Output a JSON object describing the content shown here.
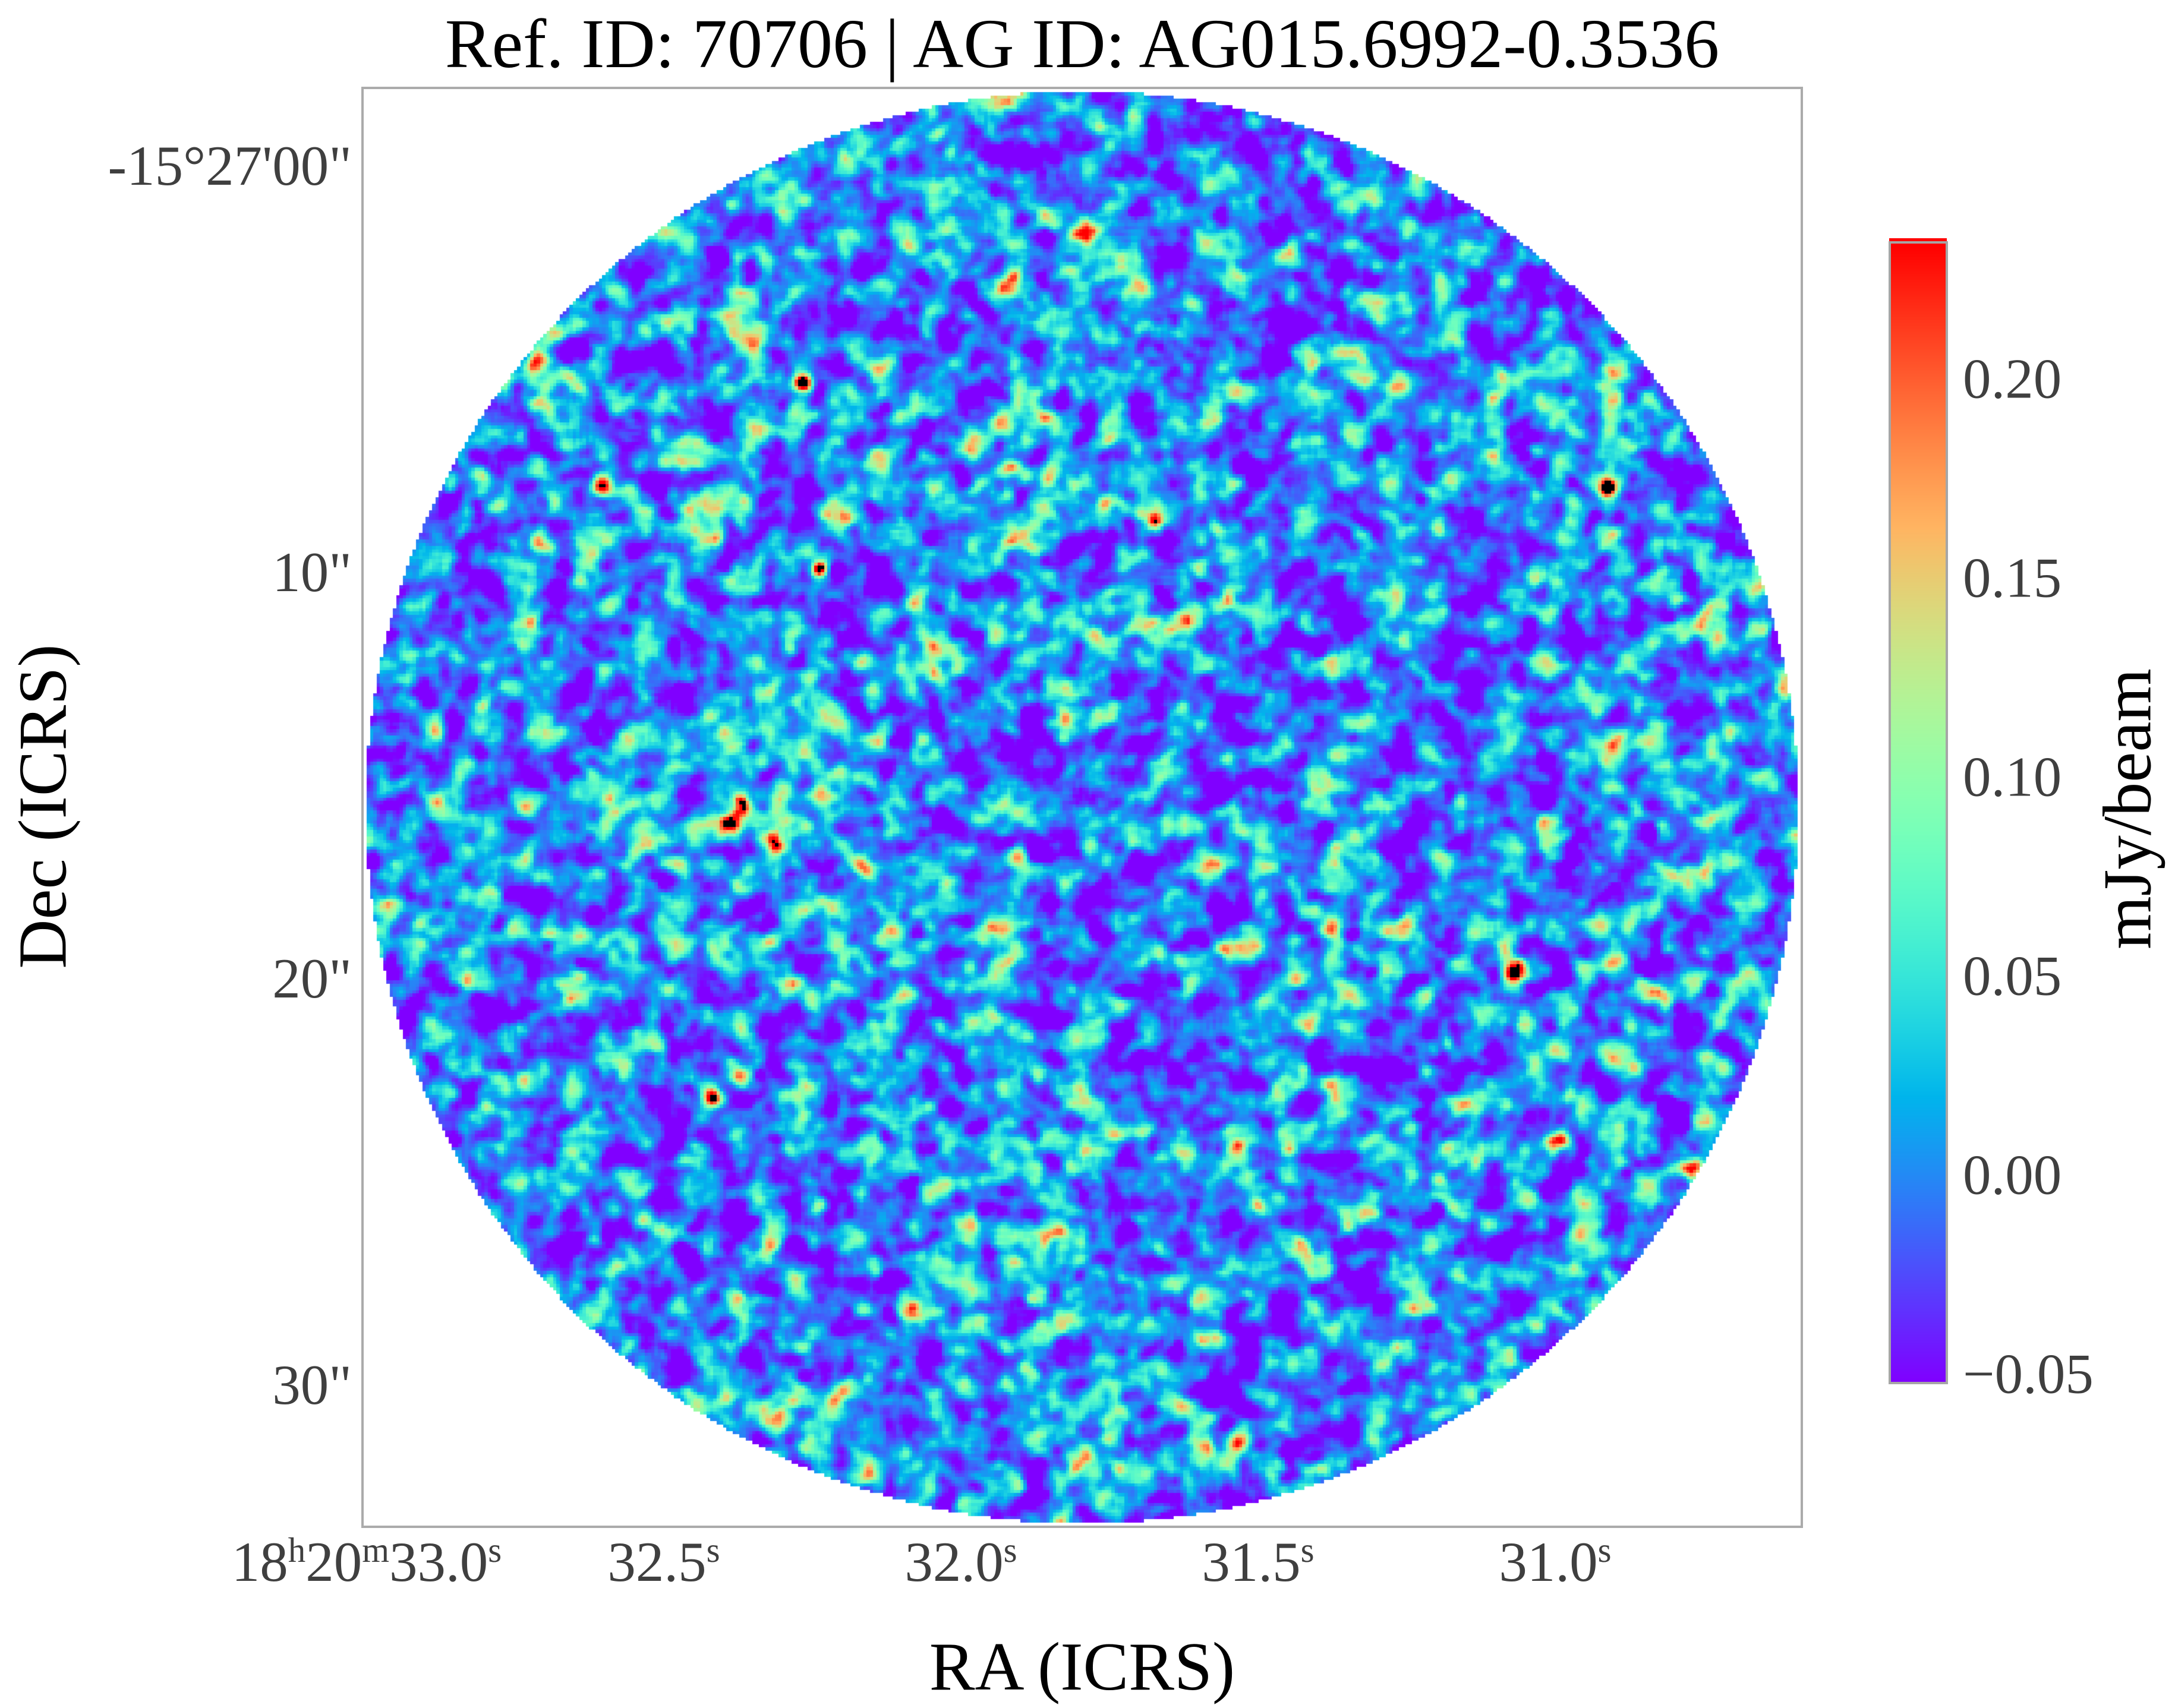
{
  "title": "Ref. ID: 70706 | AG ID: AG015.6992-0.3536",
  "chart_data": {
    "type": "heatmap",
    "title": "Ref. ID: 70706 | AG ID: AG015.6992-0.3536",
    "xlabel": "RA (ICRS)",
    "ylabel": "Dec (ICRS)",
    "x_axis": {
      "ticks": [
        {
          "label_parts": [
            [
              "18",
              false
            ],
            [
              "h",
              true
            ],
            [
              "20",
              false
            ],
            [
              "m",
              true
            ],
            [
              "33.0",
              false
            ],
            [
              "s",
              true
            ]
          ]
        },
        {
          "label_parts": [
            [
              "32.5",
              false
            ],
            [
              "s",
              true
            ]
          ]
        },
        {
          "label_parts": [
            [
              "32.0",
              false
            ],
            [
              "s",
              true
            ]
          ]
        },
        {
          "label_parts": [
            [
              "31.5",
              false
            ],
            [
              "s",
              true
            ]
          ]
        },
        {
          "label_parts": [
            [
              "31.0",
              false
            ],
            [
              "s",
              true
            ]
          ]
        }
      ]
    },
    "y_axis": {
      "ticks": [
        "-15°27'00\"",
        "10\"",
        "20\"",
        "30\""
      ]
    },
    "colorbar": {
      "label": "mJy/beam",
      "tick_values": [
        0.2,
        0.15,
        0.1,
        0.05,
        0.0,
        -0.05
      ],
      "tick_labels": [
        "0.20",
        "0.15",
        "0.10",
        "0.05",
        "0.00",
        "−0.05"
      ],
      "vmin": -0.052,
      "vmax": 0.234,
      "colormap": "rainbow",
      "colormap_stops": [
        "#8000ff",
        "#00b5ec",
        "#80ffb4",
        "#ffb462",
        "#ff0000"
      ],
      "top_edge_color": "#ff0000"
    },
    "image": {
      "shape": "circle",
      "description": "Circular interferometric continuum cutout filled with correlated noise: violet/blue background, cyan-green blobs, sparse orange-red peaks, tiny black contour cores on brightest peaks",
      "background_color": "#6a2cf2",
      "peak_core_color": "#000000",
      "noise_mean_mjy": 0.0,
      "noise_tail_max_mjy": 0.3,
      "seed": 42
    },
    "style": {
      "frame_color": "#ababab",
      "tick_text_color": "#3f3f3f",
      "label_text_color": "#000000",
      "background": "#ffffff",
      "grid": false,
      "legend": false
    }
  }
}
